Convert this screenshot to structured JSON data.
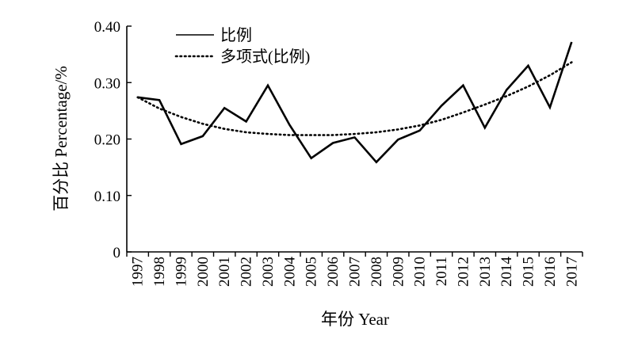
{
  "chart_data": {
    "type": "line",
    "title": "",
    "xlabel": "年份 Year",
    "ylabel": "百分比 Percentage/%",
    "x": [
      "1997",
      "1998",
      "1999",
      "2000",
      "2001",
      "2002",
      "2003",
      "2004",
      "2005",
      "2006",
      "2007",
      "2008",
      "2009",
      "2010",
      "2011",
      "2012",
      "2013",
      "2014",
      "2015",
      "2016",
      "2017"
    ],
    "ylim": [
      0,
      0.4
    ],
    "yticks": [
      "0",
      "0.10",
      "0.20",
      "0.30",
      "0.40"
    ],
    "grid": false,
    "legend_position": "top-left",
    "series": [
      {
        "name": "比例",
        "style": "solid",
        "values": [
          0.274,
          0.269,
          0.191,
          0.205,
          0.255,
          0.231,
          0.295,
          0.225,
          0.166,
          0.193,
          0.203,
          0.159,
          0.199,
          0.215,
          0.259,
          0.295,
          0.22,
          0.287,
          0.33,
          0.256,
          0.372
        ]
      },
      {
        "name": "多项式(比例)",
        "style": "dotted",
        "values": [
          0.274,
          0.254,
          0.239,
          0.227,
          0.218,
          0.212,
          0.209,
          0.207,
          0.207,
          0.207,
          0.209,
          0.212,
          0.217,
          0.224,
          0.234,
          0.247,
          0.261,
          0.276,
          0.293,
          0.313,
          0.336
        ]
      }
    ]
  }
}
